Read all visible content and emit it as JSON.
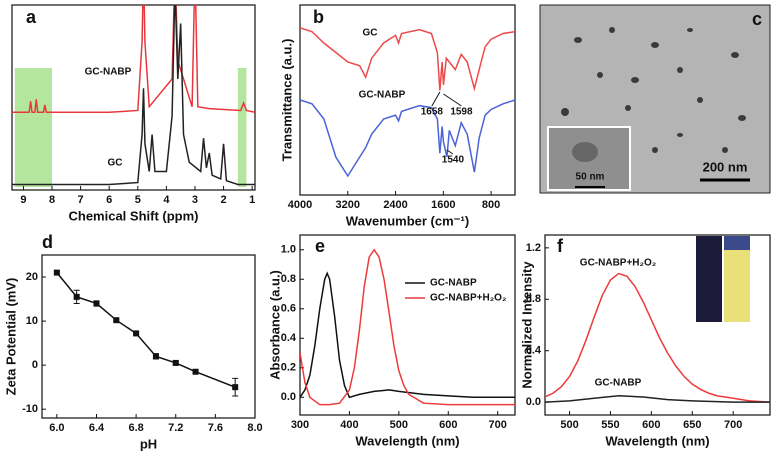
{
  "chart_data": [
    {
      "type": "line",
      "panel_label": "a",
      "x_label": "Chemical Shift (ppm)",
      "xlim": [
        9.4,
        0.9
      ],
      "xticks": [
        9,
        8,
        7,
        6,
        5,
        4,
        3,
        2,
        1
      ],
      "ylim": [
        0,
        1
      ],
      "highlight_ranges": [
        [
          9.3,
          8.0
        ],
        [
          1.5,
          1.2
        ]
      ],
      "highlight_color": "#b5e6a0",
      "series": [
        {
          "name": "GC-NABP",
          "color": "#e8383d",
          "x": [
            9.4,
            8.8,
            8.75,
            8.7,
            8.6,
            8.55,
            8.5,
            8.3,
            8.25,
            8.2,
            6,
            5.0,
            4.85,
            4.8,
            4.75,
            4.6,
            3.8,
            3.7,
            3.6,
            3.1,
            3.0,
            2.9,
            2.5,
            1.4,
            1.3,
            1.2,
            0.9
          ],
          "values": [
            0.42,
            0.42,
            0.48,
            0.42,
            0.42,
            0.49,
            0.42,
            0.42,
            0.46,
            0.42,
            0.42,
            0.43,
            0.8,
            1.2,
            0.8,
            0.45,
            0.6,
            1.2,
            0.7,
            0.45,
            1.2,
            0.45,
            0.44,
            0.43,
            0.47,
            0.43,
            0.42
          ]
        },
        {
          "name": "GC",
          "color": "#222222",
          "x": [
            9.4,
            6,
            5.0,
            4.85,
            4.8,
            4.75,
            4.6,
            4.5,
            4.4,
            4.0,
            3.8,
            3.7,
            3.6,
            3.5,
            3.4,
            3.2,
            2.8,
            2.7,
            2.6,
            2.5,
            2.4,
            2.1,
            2.0,
            1.9,
            1.5,
            0.9
          ],
          "values": [
            0.03,
            0.03,
            0.04,
            0.3,
            0.55,
            0.25,
            0.1,
            0.3,
            0.1,
            0.1,
            0.4,
            1.1,
            0.6,
            0.9,
            0.3,
            0.15,
            0.1,
            0.28,
            0.12,
            0.2,
            0.08,
            0.06,
            0.25,
            0.05,
            0.03,
            0.03
          ]
        }
      ]
    },
    {
      "type": "line",
      "panel_label": "b",
      "x_label": "Wavenumber (cm⁻¹)",
      "y_label": "Transmittance (a.u.)",
      "xlim": [
        4000,
        400
      ],
      "xticks": [
        4000,
        3200,
        2400,
        1600,
        800
      ],
      "ylim": [
        0,
        1
      ],
      "annotations": [
        1658,
        1598,
        1540
      ],
      "series": [
        {
          "name": "GC",
          "color": "#ee4a4a",
          "x": [
            4000,
            3800,
            3600,
            3400,
            3200,
            3000,
            2900,
            2800,
            2600,
            2400,
            2350,
            2300,
            2000,
            1800,
            1700,
            1658,
            1620,
            1598,
            1550,
            1500,
            1400,
            1300,
            1200,
            1080,
            1000,
            900,
            800,
            600,
            400
          ],
          "values": [
            0.88,
            0.86,
            0.8,
            0.75,
            0.7,
            0.68,
            0.62,
            0.72,
            0.8,
            0.84,
            0.8,
            0.85,
            0.87,
            0.85,
            0.75,
            0.55,
            0.7,
            0.58,
            0.72,
            0.7,
            0.66,
            0.74,
            0.7,
            0.56,
            0.66,
            0.78,
            0.82,
            0.85,
            0.86
          ]
        },
        {
          "name": "GC-NABP",
          "color": "#4a63d8",
          "x": [
            4000,
            3800,
            3600,
            3400,
            3200,
            3000,
            2900,
            2800,
            2600,
            2400,
            2350,
            2300,
            2000,
            1800,
            1700,
            1658,
            1620,
            1598,
            1540,
            1500,
            1400,
            1300,
            1200,
            1080,
            1000,
            900,
            800,
            600,
            400
          ],
          "values": [
            0.5,
            0.48,
            0.4,
            0.2,
            0.1,
            0.2,
            0.25,
            0.32,
            0.4,
            0.42,
            0.39,
            0.44,
            0.47,
            0.46,
            0.4,
            0.22,
            0.36,
            0.28,
            0.2,
            0.34,
            0.26,
            0.38,
            0.32,
            0.12,
            0.3,
            0.42,
            0.45,
            0.48,
            0.5
          ]
        }
      ]
    },
    {
      "type": "image",
      "panel_label": "c",
      "scale_bar": "200 nm",
      "inset_scale_bar": "50 nm"
    },
    {
      "type": "line",
      "panel_label": "d",
      "x_label": "pH",
      "y_label": "Zeta Potential (mV)",
      "markers": true,
      "xlim": [
        5.85,
        8.0
      ],
      "xticks": [
        {
          "value": 6,
          "label": "6.0"
        },
        {
          "value": 6.4,
          "label": "6.4"
        },
        {
          "value": 6.8,
          "label": "6.8"
        },
        {
          "value": 7.2,
          "label": "7.2"
        },
        {
          "value": 7.6,
          "label": "7.6"
        },
        {
          "value": 8,
          "label": "8.0"
        }
      ],
      "ylim": [
        -12,
        25
      ],
      "yticks": [
        -10,
        0,
        10,
        20
      ],
      "series": [
        {
          "color": "#111111",
          "x": [
            6.0,
            6.2,
            6.4,
            6.6,
            6.8,
            7.0,
            7.2,
            7.4,
            7.8
          ],
          "values": [
            21,
            15.5,
            14,
            10.2,
            7.2,
            2,
            0.5,
            -1.5,
            -5
          ],
          "errors": [
            0.3,
            1.5,
            0.6,
            0.3,
            0.3,
            0.6,
            0.4,
            0.3,
            2
          ]
        }
      ]
    },
    {
      "type": "line",
      "panel_label": "e",
      "x_label": "Wavelength (nm)",
      "y_label": "Absorbance (a.u.)",
      "legend": "upper right",
      "xlim": [
        300,
        735
      ],
      "xticks": [
        300,
        400,
        500,
        600,
        700
      ],
      "ylim": [
        -0.12,
        1.1
      ],
      "yticks": [
        {
          "value": 0,
          "label": "0.0"
        },
        {
          "value": 0.2,
          "label": "0.2"
        },
        {
          "value": 0.4,
          "label": "0.4"
        },
        {
          "value": 0.6,
          "label": "0.6"
        },
        {
          "value": 0.8,
          "label": "0.8"
        },
        {
          "value": 1,
          "label": "1.0"
        }
      ],
      "series": [
        {
          "name": "GC-NABP",
          "color": "#111111",
          "x": [
            300,
            310,
            320,
            330,
            340,
            350,
            355,
            360,
            370,
            380,
            390,
            400,
            420,
            450,
            480,
            500,
            550,
            600,
            650,
            700,
            735
          ],
          "values": [
            0.0,
            0.05,
            0.15,
            0.35,
            0.6,
            0.8,
            0.84,
            0.8,
            0.55,
            0.25,
            0.08,
            0.0,
            0.02,
            0.04,
            0.05,
            0.04,
            0.02,
            0.01,
            0.0,
            0.0,
            0.0
          ]
        },
        {
          "name": "GC-NABP+H₂O₂",
          "color": "#ee3a3a",
          "x": [
            300,
            310,
            320,
            340,
            360,
            380,
            400,
            410,
            420,
            430,
            440,
            450,
            460,
            470,
            480,
            490,
            500,
            510,
            520,
            550,
            600,
            650,
            700,
            735
          ],
          "values": [
            0.3,
            0.1,
            0.0,
            -0.05,
            -0.05,
            -0.04,
            0.05,
            0.2,
            0.45,
            0.75,
            0.95,
            1.0,
            0.95,
            0.8,
            0.58,
            0.35,
            0.18,
            0.08,
            0.02,
            -0.04,
            -0.05,
            -0.05,
            -0.05,
            -0.05
          ]
        }
      ]
    },
    {
      "type": "line",
      "panel_label": "f",
      "x_label": "Wavelength (nm)",
      "y_label": "Normalized Intensity",
      "xlim": [
        470,
        745
      ],
      "xticks": [
        500,
        550,
        600,
        650,
        700
      ],
      "ylim": [
        -0.1,
        1.3
      ],
      "yticks": [
        {
          "value": 0,
          "label": "0.0"
        },
        {
          "value": 0.4,
          "label": "0.4"
        },
        {
          "value": 0.8,
          "label": "0.8"
        },
        {
          "value": 1.2,
          "label": "1.2"
        }
      ],
      "series": [
        {
          "name": "GC-NABP+H₂O₂",
          "color": "#ee3a3a",
          "x": [
            470,
            480,
            490,
            500,
            510,
            520,
            530,
            540,
            550,
            560,
            570,
            580,
            590,
            600,
            610,
            620,
            630,
            640,
            650,
            660,
            670,
            680,
            700,
            720,
            745
          ],
          "values": [
            0.04,
            0.07,
            0.12,
            0.2,
            0.32,
            0.48,
            0.66,
            0.83,
            0.95,
            1.0,
            0.98,
            0.9,
            0.78,
            0.64,
            0.5,
            0.38,
            0.28,
            0.2,
            0.14,
            0.1,
            0.07,
            0.05,
            0.03,
            0.01,
            0.0
          ]
        },
        {
          "name": "GC-NABP",
          "color": "#222222",
          "x": [
            470,
            500,
            530,
            560,
            590,
            620,
            650,
            700,
            745
          ],
          "values": [
            0.0,
            0.01,
            0.03,
            0.05,
            0.04,
            0.02,
            0.01,
            0.0,
            0.0
          ]
        }
      ]
    }
  ]
}
